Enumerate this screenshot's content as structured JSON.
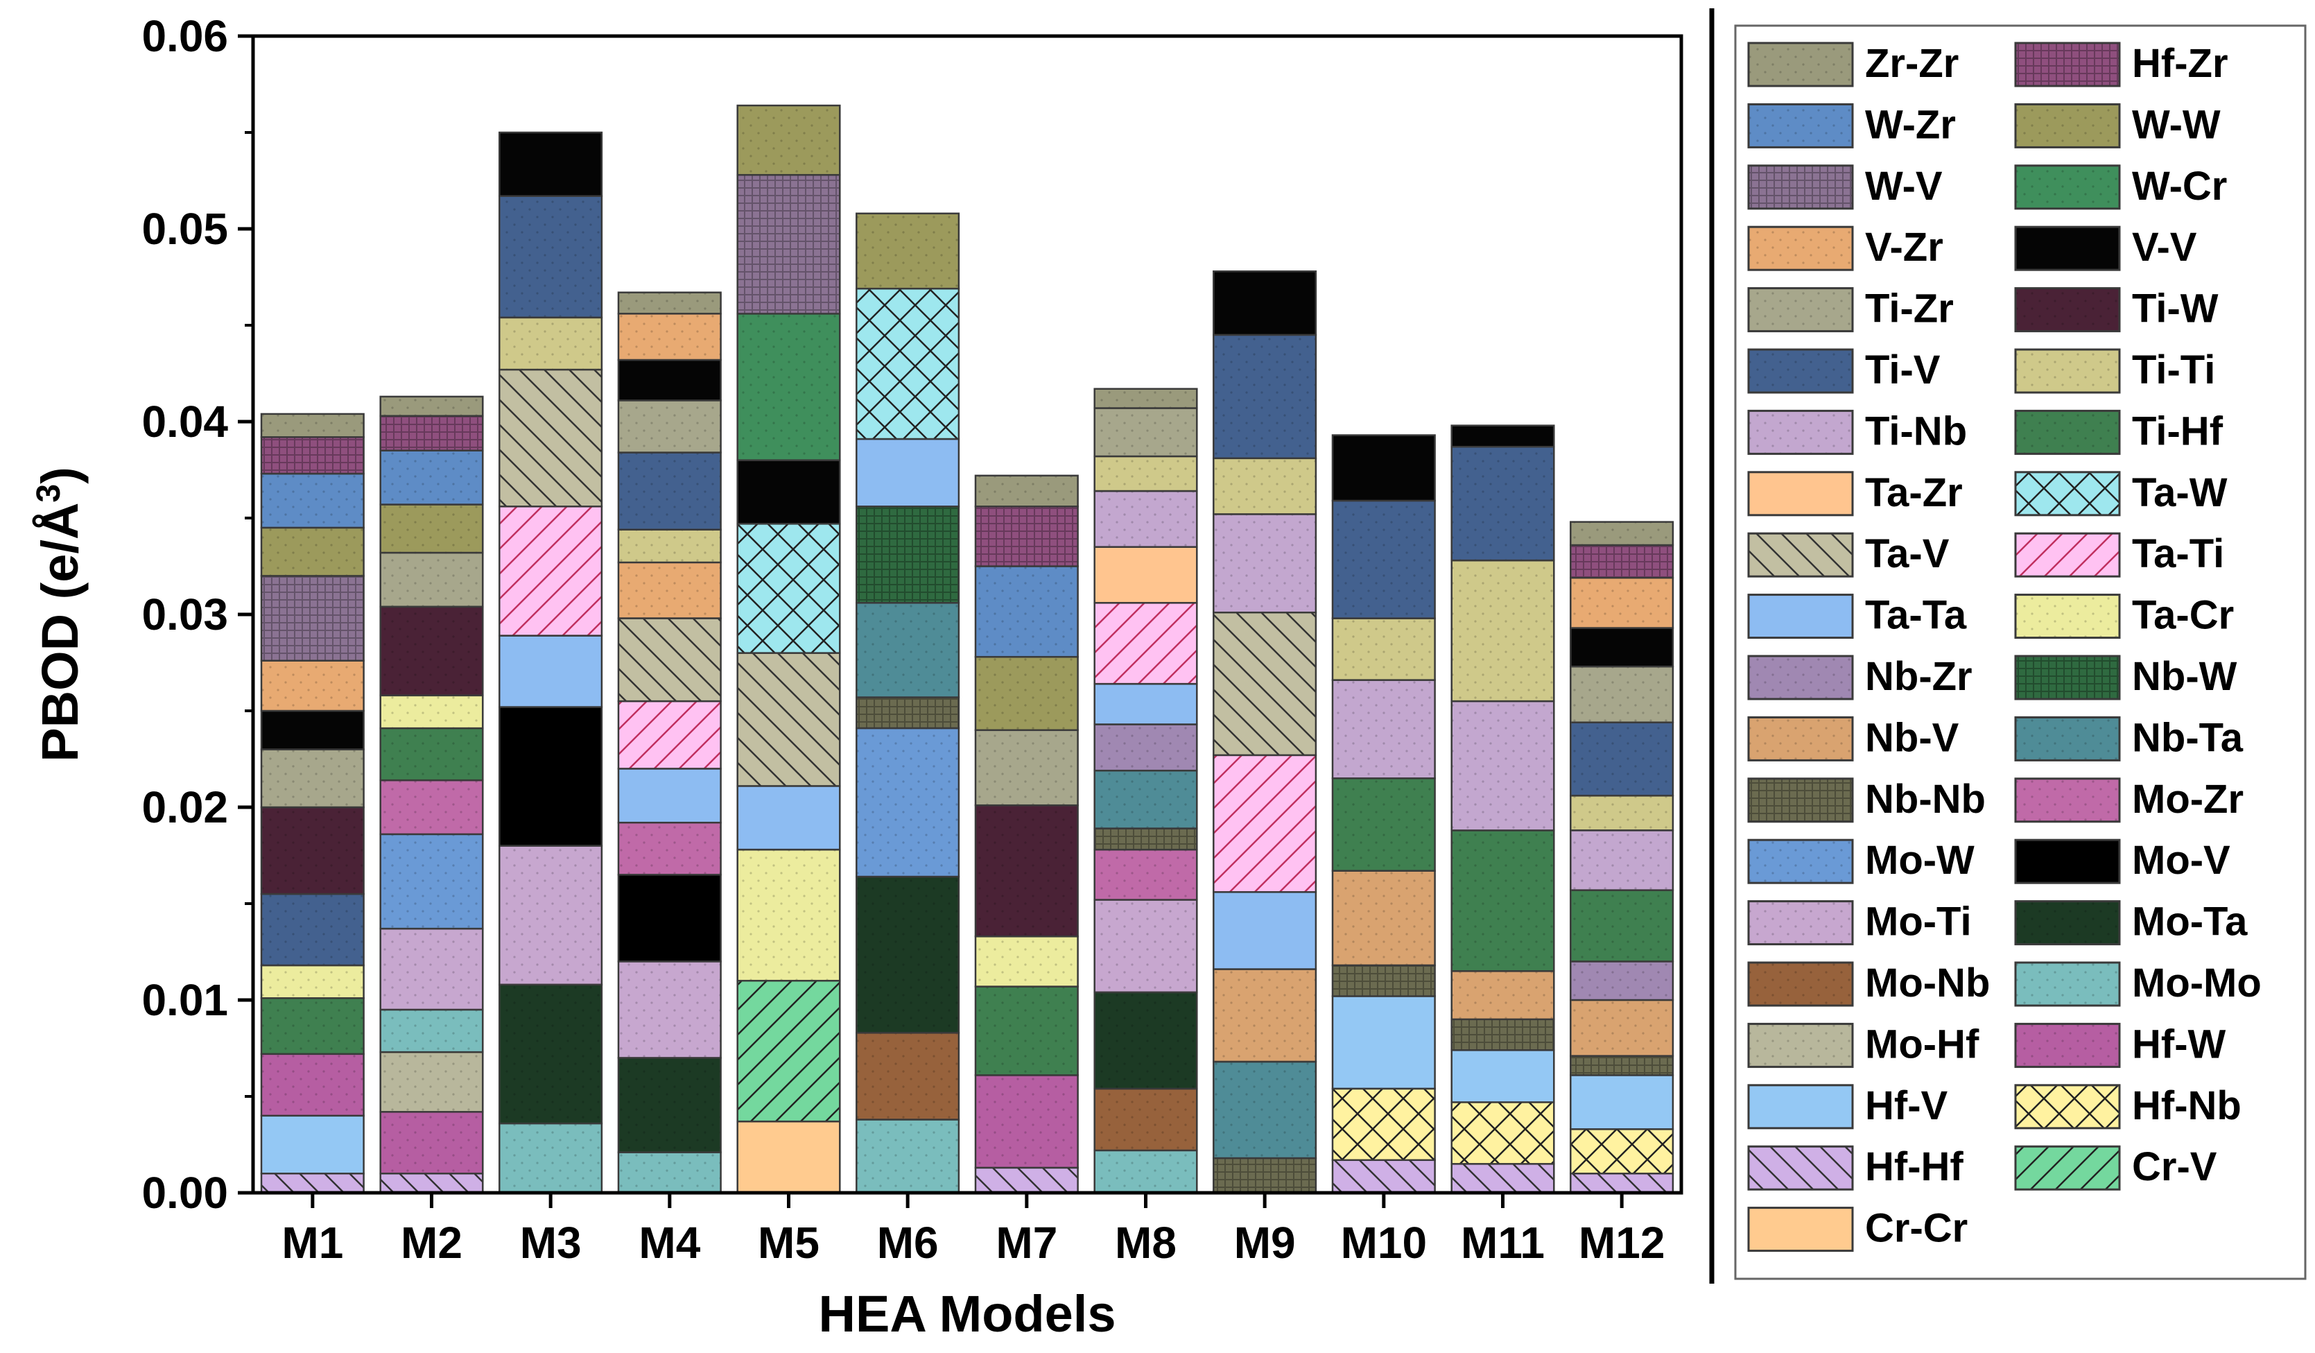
{
  "chart_data": {
    "type": "stacked-bar",
    "xlabel": "HEA Models",
    "ylabel_base": "PBOD (e/",
    "ylabel_unit": "Å",
    "ylabel_sup": "3",
    "ylabel_end": ")",
    "ylim": [
      0,
      0.06
    ],
    "yticks": [
      {
        "value": 0.0,
        "label": "0.00"
      },
      {
        "value": 0.01,
        "label": "0.01"
      },
      {
        "value": 0.02,
        "label": "0.02"
      },
      {
        "value": 0.03,
        "label": "0.03"
      },
      {
        "value": 0.04,
        "label": "0.04"
      },
      {
        "value": 0.05,
        "label": "0.05"
      },
      {
        "value": 0.06,
        "label": "0.06"
      }
    ],
    "categories": [
      "M1",
      "M2",
      "M3",
      "M4",
      "M5",
      "M6",
      "M7",
      "M8",
      "M9",
      "M10",
      "M11",
      "M12"
    ],
    "series": [
      {
        "name": "Zr-Zr",
        "color": "#9a9a7c",
        "pattern": "dots"
      },
      {
        "name": "Hf-Zr",
        "color": "#8f4f7e",
        "pattern": "grid"
      },
      {
        "name": "W-Zr",
        "color": "#5e8cc6",
        "pattern": "dots"
      },
      {
        "name": "W-W",
        "color": "#9c9a5c",
        "pattern": "dots"
      },
      {
        "name": "W-V",
        "color": "#8b7393",
        "pattern": "grid"
      },
      {
        "name": "W-Cr",
        "color": "#3f8f5c",
        "pattern": "dots"
      },
      {
        "name": "V-Zr",
        "color": "#e8aa72",
        "pattern": "dots"
      },
      {
        "name": "V-V",
        "color": "#050505",
        "pattern": "none"
      },
      {
        "name": "Ti-Zr",
        "color": "#a7a78c",
        "pattern": "dots"
      },
      {
        "name": "Ti-W",
        "color": "#4a2236",
        "pattern": "dots"
      },
      {
        "name": "Ti-V",
        "color": "#43618f",
        "pattern": "dots"
      },
      {
        "name": "Ti-Ti",
        "color": "#cfc98a",
        "pattern": "dots"
      },
      {
        "name": "Ti-Nb",
        "color": "#c3a7cf",
        "pattern": "dots"
      },
      {
        "name": "Ti-Hf",
        "color": "#3f8050",
        "pattern": "dots"
      },
      {
        "name": "Ta-Zr",
        "color": "#ffc58f",
        "pattern": "none"
      },
      {
        "name": "Ta-W",
        "color": "#9ee7ee",
        "pattern": "crosshatch"
      },
      {
        "name": "Ta-V",
        "color": "#c2bfa2",
        "pattern": "back"
      },
      {
        "name": "Ta-Ti",
        "color": "#ffc2f2",
        "pattern": "diag-red"
      },
      {
        "name": "Ta-Ta",
        "color": "#8dbcf2",
        "pattern": "none"
      },
      {
        "name": "Ta-Cr",
        "color": "#ecec9e",
        "pattern": "dots"
      },
      {
        "name": "Nb-Zr",
        "color": "#a088b2",
        "pattern": "dots"
      },
      {
        "name": "Nb-W",
        "color": "#2f6a40",
        "pattern": "grid"
      },
      {
        "name": "Nb-V",
        "color": "#d9a370",
        "pattern": "dots"
      },
      {
        "name": "Nb-Ta",
        "color": "#4f8c97",
        "pattern": "dots"
      },
      {
        "name": "Nb-Nb",
        "color": "#6b6b50",
        "pattern": "grid"
      },
      {
        "name": "Mo-Zr",
        "color": "#c06aa8",
        "pattern": "dots"
      },
      {
        "name": "Mo-W",
        "color": "#6a9ad6",
        "pattern": "dots"
      },
      {
        "name": "Mo-V",
        "color": "#000000",
        "pattern": "none"
      },
      {
        "name": "Mo-Ti",
        "color": "#c7a7cf",
        "pattern": "dots"
      },
      {
        "name": "Mo-Ta",
        "color": "#1c3a24",
        "pattern": "dots"
      },
      {
        "name": "Mo-Nb",
        "color": "#97623c",
        "pattern": "dots"
      },
      {
        "name": "Mo-Mo",
        "color": "#7abdbd",
        "pattern": "dots"
      },
      {
        "name": "Mo-Hf",
        "color": "#b8b79c",
        "pattern": "dots"
      },
      {
        "name": "Hf-W",
        "color": "#b65ea2",
        "pattern": "dots"
      },
      {
        "name": "Hf-V",
        "color": "#94c8f4",
        "pattern": "none"
      },
      {
        "name": "Hf-Nb",
        "color": "#fff2a0",
        "pattern": "crosshatch"
      },
      {
        "name": "Hf-Hf",
        "color": "#cfb0e6",
        "pattern": "back"
      },
      {
        "name": "Cr-V",
        "color": "#74d89e",
        "pattern": "diag"
      },
      {
        "name": "Cr-Cr",
        "color": "#ffcb8f",
        "pattern": "none"
      }
    ],
    "bars": [
      {
        "category": "M1",
        "segments": [
          [
            "Hf-Hf",
            0.001
          ],
          [
            "Hf-V",
            0.003
          ],
          [
            "Hf-W",
            0.0032
          ],
          [
            "Ti-Hf",
            0.0029
          ],
          [
            "Ta-Cr",
            0.0017
          ],
          [
            "Ti-V",
            0.0037
          ],
          [
            "Ti-W",
            0.0045
          ],
          [
            "Ti-Zr",
            0.003
          ],
          [
            "V-V",
            0.002
          ],
          [
            "V-Zr",
            0.0026
          ],
          [
            "W-V",
            0.0044
          ],
          [
            "W-W",
            0.0025
          ],
          [
            "W-Zr",
            0.0028
          ],
          [
            "Hf-Zr",
            0.0019
          ],
          [
            "Zr-Zr",
            0.0012
          ]
        ]
      },
      {
        "category": "M2",
        "segments": [
          [
            "Hf-Hf",
            0.001
          ],
          [
            "Hf-W",
            0.0032
          ],
          [
            "Mo-Hf",
            0.0031
          ],
          [
            "Mo-Mo",
            0.0022
          ],
          [
            "Mo-Ti",
            0.0042
          ],
          [
            "Mo-W",
            0.0049
          ],
          [
            "Mo-Zr",
            0.0028
          ],
          [
            "Ti-Hf",
            0.0027
          ],
          [
            "Ta-Cr",
            0.0017
          ],
          [
            "Ti-W",
            0.0046
          ],
          [
            "Ti-Zr",
            0.0028
          ],
          [
            "W-W",
            0.0025
          ],
          [
            "W-Zr",
            0.0028
          ],
          [
            "Hf-Zr",
            0.0018
          ],
          [
            "Zr-Zr",
            0.001
          ]
        ]
      },
      {
        "category": "M3",
        "segments": [
          [
            "Mo-Mo",
            0.0036
          ],
          [
            "Mo-Ta",
            0.0072
          ],
          [
            "Mo-Ti",
            0.0072
          ],
          [
            "Mo-V",
            0.0072
          ],
          [
            "Ta-Ta",
            0.0037
          ],
          [
            "Ta-Ti",
            0.0067
          ],
          [
            "Ta-V",
            0.0071
          ],
          [
            "Ti-Ti",
            0.0027
          ],
          [
            "Ti-V",
            0.0063
          ],
          [
            "V-V",
            0.0033
          ]
        ]
      },
      {
        "category": "M4",
        "segments": [
          [
            "Mo-Mo",
            0.0021
          ],
          [
            "Mo-Ta",
            0.0049
          ],
          [
            "Mo-Ti",
            0.005
          ],
          [
            "Mo-V",
            0.0045
          ],
          [
            "Mo-Zr",
            0.0027
          ],
          [
            "Ta-Ta",
            0.0028
          ],
          [
            "Ta-Ti",
            0.0035
          ],
          [
            "Ta-V",
            0.0043
          ],
          [
            "V-Zr",
            0.0029
          ],
          [
            "Ti-Ti",
            0.0017
          ],
          [
            "Ti-V",
            0.004
          ],
          [
            "Ti-Zr",
            0.0027
          ],
          [
            "V-V",
            0.0021
          ],
          [
            "V-Zr",
            0.0024
          ],
          [
            "Zr-Zr",
            0.0011
          ]
        ]
      },
      {
        "category": "M5",
        "segments": [
          [
            "Cr-Cr",
            0.0037
          ],
          [
            "Cr-V",
            0.0073
          ],
          [
            "Ta-Cr",
            0.0068
          ],
          [
            "Ta-Ta",
            0.0033
          ],
          [
            "Ta-V",
            0.0069
          ],
          [
            "Ta-W",
            0.0067
          ],
          [
            "V-V",
            0.0033
          ],
          [
            "W-Cr",
            0.0076
          ],
          [
            "W-V",
            0.0072
          ],
          [
            "W-W",
            0.0036
          ]
        ]
      },
      {
        "category": "M6",
        "segments": [
          [
            "Mo-Mo",
            0.0038
          ],
          [
            "Mo-Nb",
            0.0045
          ],
          [
            "Mo-Ta",
            0.0081
          ],
          [
            "Mo-W",
            0.0077
          ],
          [
            "Nb-Nb",
            0.0016
          ],
          [
            "Nb-Ta",
            0.0049
          ],
          [
            "Nb-W",
            0.005
          ],
          [
            "Ta-Ta",
            0.0035
          ],
          [
            "Ta-W",
            0.0078
          ],
          [
            "W-W",
            0.0039
          ]
        ]
      },
      {
        "category": "M7",
        "segments": [
          [
            "Hf-Hf",
            0.0013
          ],
          [
            "Hf-W",
            0.0048
          ],
          [
            "Ti-Hf",
            0.0046
          ],
          [
            "Ta-Cr",
            0.0026
          ],
          [
            "Ti-W",
            0.0068
          ],
          [
            "Ti-Zr",
            0.0039
          ],
          [
            "W-W",
            0.0038
          ],
          [
            "W-Zr",
            0.0047
          ],
          [
            "Hf-Zr",
            0.0031
          ],
          [
            "Zr-Zr",
            0.0016
          ]
        ]
      },
      {
        "category": "M8",
        "segments": [
          [
            "Mo-Mo",
            0.0022
          ],
          [
            "Mo-Nb",
            0.0032
          ],
          [
            "Mo-Ta",
            0.005
          ],
          [
            "Mo-Ti",
            0.0048
          ],
          [
            "Mo-Zr",
            0.0026
          ],
          [
            "Nb-Nb",
            0.0011
          ],
          [
            "Nb-Ta",
            0.003
          ],
          [
            "Nb-Zr",
            0.0024
          ],
          [
            "Ta-Ta",
            0.0021
          ],
          [
            "Ta-Ti",
            0.0042
          ],
          [
            "Ta-Zr",
            0.0029
          ],
          [
            "Ti-Nb",
            0.0029
          ],
          [
            "Ti-Ti",
            0.0018
          ],
          [
            "Ti-Zr",
            0.0025
          ],
          [
            "Zr-Zr",
            0.001
          ]
        ]
      },
      {
        "category": "M9",
        "segments": [
          [
            "Nb-Nb",
            0.0018
          ],
          [
            "Nb-Ta",
            0.005
          ],
          [
            "Nb-V",
            0.0048
          ],
          [
            "Ta-Ta",
            0.004
          ],
          [
            "Ta-Ti",
            0.0071
          ],
          [
            "Ta-V",
            0.0074
          ],
          [
            "Ti-Nb",
            0.0051
          ],
          [
            "Ti-Ti",
            0.0029
          ],
          [
            "Ti-V",
            0.0064
          ],
          [
            "V-V",
            0.0033
          ]
        ]
      },
      {
        "category": "M10",
        "segments": [
          [
            "Hf-Hf",
            0.0017
          ],
          [
            "Hf-Nb",
            0.0037
          ],
          [
            "Hf-V",
            0.0048
          ],
          [
            "Nb-Nb",
            0.0016
          ],
          [
            "Nb-V",
            0.0049
          ],
          [
            "Ti-Hf",
            0.0048
          ],
          [
            "Ti-Nb",
            0.0051
          ],
          [
            "Ti-Ti",
            0.0032
          ],
          [
            "Ti-V",
            0.0061
          ],
          [
            "V-V",
            0.0034
          ]
        ]
      },
      {
        "category": "M11",
        "segments": [
          [
            "Hf-Hf",
            0.0015
          ],
          [
            "Hf-Nb",
            0.0032
          ],
          [
            "Hf-V",
            0.0027
          ],
          [
            "Nb-Nb",
            0.0016
          ],
          [
            "Nb-V",
            0.0025
          ],
          [
            "Ti-Hf",
            0.0073
          ],
          [
            "Ti-Nb",
            0.0067
          ],
          [
            "Ti-Ti",
            0.0073
          ],
          [
            "Ti-V",
            0.0059
          ],
          [
            "V-V",
            0.0011
          ]
        ]
      },
      {
        "category": "M12",
        "segments": [
          [
            "Hf-Hf",
            0.001
          ],
          [
            "Hf-Nb",
            0.0023
          ],
          [
            "Hf-V",
            0.0028
          ],
          [
            "Nb-Nb",
            0.001
          ],
          [
            "Nb-V",
            0.0029
          ],
          [
            "Nb-Zr",
            0.002
          ],
          [
            "Ti-Hf",
            0.0037
          ],
          [
            "Ti-Nb",
            0.0031
          ],
          [
            "Ti-Ti",
            0.0018
          ],
          [
            "Ti-V",
            0.0038
          ],
          [
            "Ti-Zr",
            0.0029
          ],
          [
            "V-V",
            0.002
          ],
          [
            "V-Zr",
            0.0026
          ],
          [
            "Hf-Zr",
            0.0017
          ],
          [
            "Zr-Zr",
            0.0012
          ]
        ]
      }
    ],
    "legend": {
      "position": "right",
      "columns": 2,
      "items": [
        "Zr-Zr",
        "Hf-Zr",
        "W-Zr",
        "W-W",
        "W-V",
        "W-Cr",
        "V-Zr",
        "V-V",
        "Ti-Zr",
        "Ti-W",
        "Ti-V",
        "Ti-Ti",
        "Ti-Nb",
        "Ti-Hf",
        "Ta-Zr",
        "Ta-W",
        "Ta-V",
        "Ta-Ti",
        "Ta-Ta",
        "Ta-Cr",
        "Nb-Zr",
        "Nb-W",
        "Nb-V",
        "Nb-Ta",
        "Nb-Nb",
        "Mo-Zr",
        "Mo-W",
        "Mo-V",
        "Mo-Ti",
        "Mo-Ta",
        "Mo-Nb",
        "Mo-Mo",
        "Mo-Hf",
        "Hf-W",
        "Hf-V",
        "Hf-Nb",
        "Hf-Hf",
        "Cr-V",
        "Cr-Cr"
      ]
    }
  }
}
